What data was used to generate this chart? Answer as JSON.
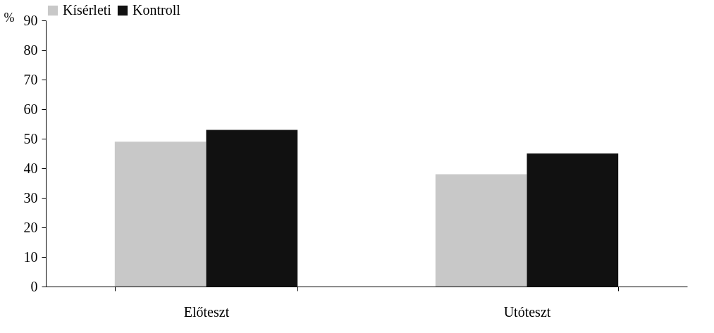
{
  "chart_data": {
    "type": "bar",
    "ylabel": "%",
    "categories": [
      "Előteszt",
      "Utóteszt"
    ],
    "series": [
      {
        "name": "Kísérleti",
        "color": "#c8c8c8",
        "values": [
          49,
          38
        ]
      },
      {
        "name": "Kontroll",
        "color": "#111111",
        "values": [
          53,
          45
        ]
      }
    ],
    "ylim": [
      0,
      90
    ],
    "yticks": [
      0,
      10,
      20,
      30,
      40,
      50,
      60,
      70,
      80,
      90
    ],
    "grid": false,
    "legend": "top"
  }
}
